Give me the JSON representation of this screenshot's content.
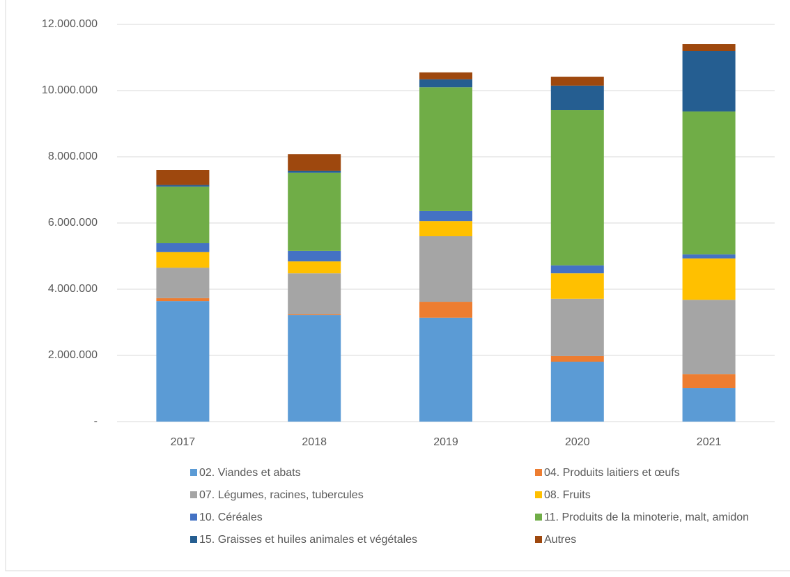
{
  "chart_data": {
    "type": "stacked_bar",
    "categories": [
      "2017",
      "2018",
      "2019",
      "2020",
      "2021"
    ],
    "series": [
      {
        "name": "02. Viandes et abats",
        "color": "#5b9bd5",
        "values": [
          3640000,
          3220000,
          3140000,
          1810000,
          1010000
        ]
      },
      {
        "name": "04. Produits laitiers et œufs",
        "color": "#ed7d31",
        "values": [
          90000,
          20000,
          480000,
          170000,
          420000
        ]
      },
      {
        "name": "07. Légumes, racines, tubercules",
        "color": "#a5a5a5",
        "values": [
          920000,
          1240000,
          1980000,
          1730000,
          2250000
        ]
      },
      {
        "name": "08. Fruits",
        "color": "#ffc000",
        "values": [
          470000,
          360000,
          460000,
          770000,
          1250000
        ]
      },
      {
        "name": "10. Céréales",
        "color": "#4472c4",
        "values": [
          270000,
          320000,
          300000,
          240000,
          120000
        ]
      },
      {
        "name": "11. Produits de la minoterie, malt, amidon",
        "color": "#70ad47",
        "values": [
          1710000,
          2360000,
          3740000,
          4690000,
          4320000
        ]
      },
      {
        "name": "15. Graisses et huiles animales et végétales",
        "color": "#255e91",
        "values": [
          50000,
          60000,
          240000,
          740000,
          1830000
        ]
      },
      {
        "name": "Autres",
        "color": "#9e480e",
        "values": [
          450000,
          500000,
          210000,
          270000,
          210000
        ]
      }
    ],
    "ylim": [
      0,
      12000000
    ],
    "yticks": [
      {
        "value": 0,
        "label": "-"
      },
      {
        "value": 2000000,
        "label": "2.000.000"
      },
      {
        "value": 4000000,
        "label": "4.000.000"
      },
      {
        "value": 6000000,
        "label": "6.000.000"
      },
      {
        "value": 8000000,
        "label": "8.000.000"
      },
      {
        "value": 10000000,
        "label": "10.000.000"
      },
      {
        "value": 12000000,
        "label": "12.000.000"
      }
    ],
    "grid": true
  }
}
